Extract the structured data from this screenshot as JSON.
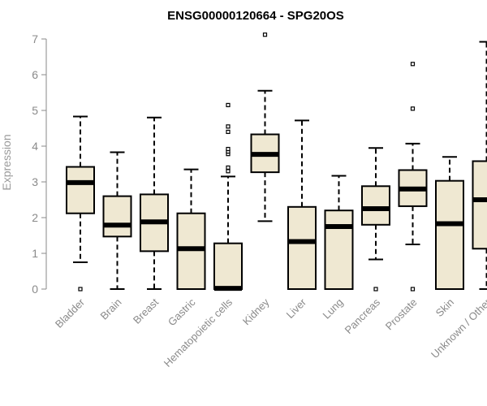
{
  "chart_data": {
    "type": "boxplot",
    "title": "ENSG00000120664 - SPG20OS",
    "xlabel": "",
    "ylabel": "Expression",
    "ylim": [
      0,
      7
    ],
    "yticks": [
      0,
      1,
      2,
      3,
      4,
      5,
      6,
      7
    ],
    "grid": false,
    "colors": {
      "box_fill": "#efe8d2",
      "stroke": "#000000",
      "axis_text": "#8a8a8a"
    },
    "categories": [
      "Bladder",
      "Brain",
      "Breast",
      "Gastric",
      "Hematopoietic cells",
      "Kidney",
      "Liver",
      "Lung",
      "Pancreas",
      "Prostate",
      "Skin",
      "Unknown / Other"
    ],
    "boxes": [
      {
        "name": "Bladder",
        "whisker_low": 0.75,
        "q1": 2.12,
        "median": 2.98,
        "q3": 3.42,
        "whisker_high": 4.83,
        "outliers": [
          0.0
        ]
      },
      {
        "name": "Brain",
        "whisker_low": 0.0,
        "q1": 1.47,
        "median": 1.79,
        "q3": 2.6,
        "whisker_high": 3.83,
        "outliers": []
      },
      {
        "name": "Breast",
        "whisker_low": 0.0,
        "q1": 1.06,
        "median": 1.88,
        "q3": 2.65,
        "whisker_high": 4.8,
        "outliers": []
      },
      {
        "name": "Gastric",
        "whisker_low": 0.0,
        "q1": 0.0,
        "median": 1.13,
        "q3": 2.12,
        "whisker_high": 3.35,
        "outliers": []
      },
      {
        "name": "Hematopoietic cells",
        "whisker_low": 0.0,
        "q1": 0.0,
        "median": 0.02,
        "q3": 1.28,
        "whisker_high": 3.15,
        "outliers": [
          3.3,
          3.4,
          3.78,
          3.85,
          3.92,
          4.4,
          4.55,
          5.15
        ]
      },
      {
        "name": "Kidney",
        "whisker_low": 1.9,
        "q1": 3.27,
        "median": 3.77,
        "q3": 4.33,
        "whisker_high": 5.55,
        "outliers": [
          7.12
        ]
      },
      {
        "name": "Liver",
        "whisker_low": 0.0,
        "q1": 0.0,
        "median": 1.33,
        "q3": 2.3,
        "whisker_high": 4.72,
        "outliers": []
      },
      {
        "name": "Lung",
        "whisker_low": 0.0,
        "q1": 0.0,
        "median": 1.75,
        "q3": 2.2,
        "whisker_high": 3.17,
        "outliers": []
      },
      {
        "name": "Pancreas",
        "whisker_low": 0.83,
        "q1": 1.8,
        "median": 2.25,
        "q3": 2.88,
        "whisker_high": 3.95,
        "outliers": [
          0.0
        ]
      },
      {
        "name": "Prostate",
        "whisker_low": 1.25,
        "q1": 2.32,
        "median": 2.8,
        "q3": 3.33,
        "whisker_high": 4.07,
        "outliers": [
          0.0,
          5.05,
          6.3
        ]
      },
      {
        "name": "Skin",
        "whisker_low": 0.0,
        "q1": 0.0,
        "median": 1.83,
        "q3": 3.03,
        "whisker_high": 3.7,
        "outliers": []
      },
      {
        "name": "Unknown / Other",
        "whisker_low": 0.0,
        "q1": 1.13,
        "median": 2.5,
        "q3": 3.58,
        "whisker_high": 6.92,
        "outliers": []
      }
    ]
  }
}
